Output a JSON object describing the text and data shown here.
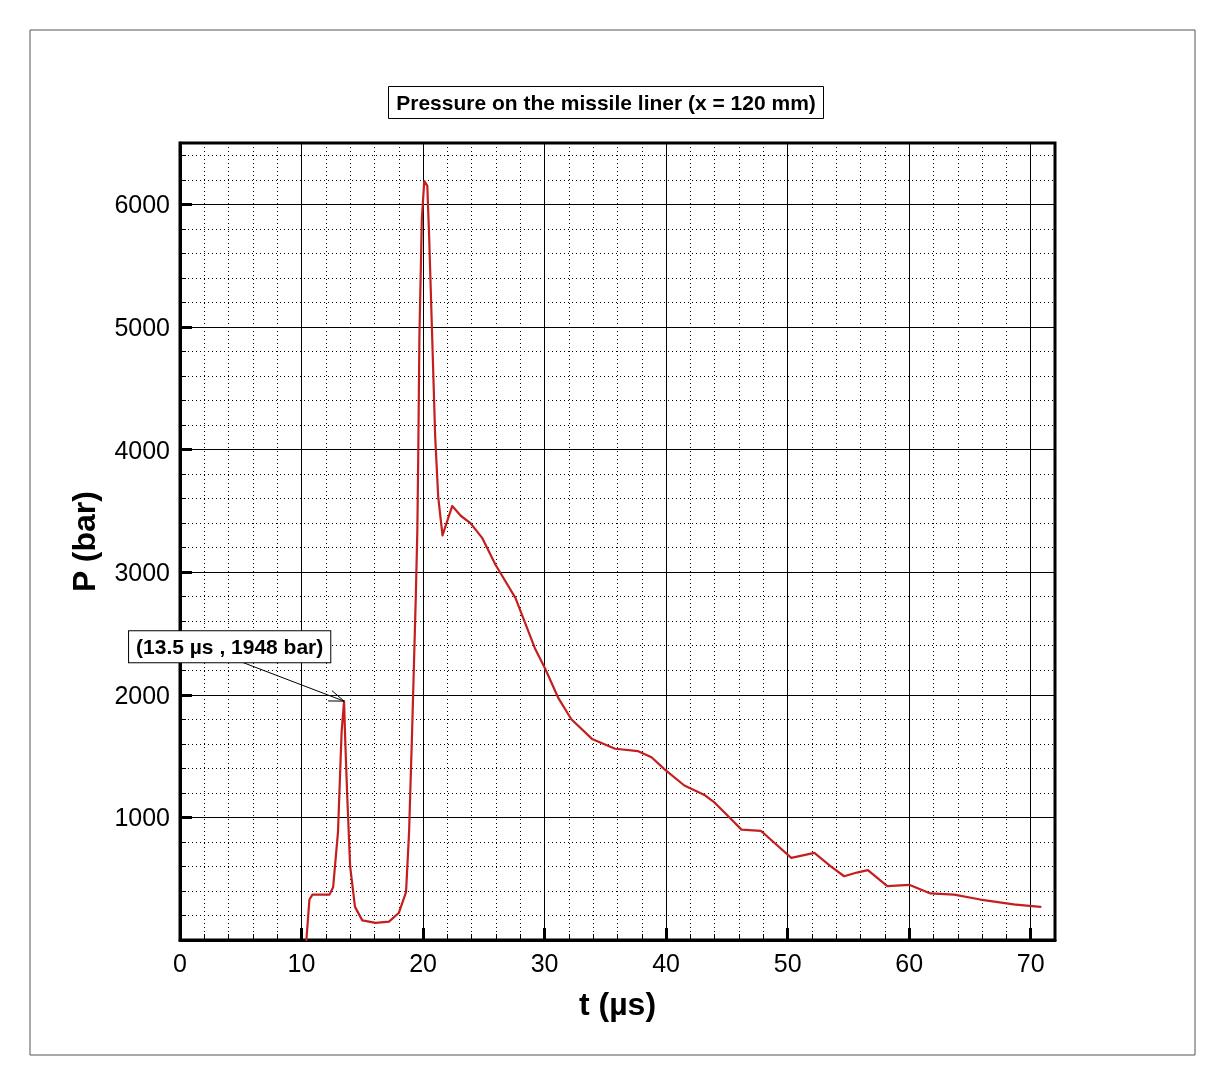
{
  "chart_data": {
    "type": "line",
    "title": "Pressure on the missile liner (x = 120 mm)",
    "xlabel": "t (µs)",
    "ylabel": "P (bar)",
    "annotations": [
      {
        "text": "(13.5 µs , 1948 bar)",
        "x": 13.5,
        "y": 1948
      }
    ],
    "xlim": [
      0,
      72
    ],
    "xticks": [
      0,
      10,
      20,
      30,
      40,
      50,
      60,
      70
    ],
    "ylim": [
      0,
      6500
    ],
    "yticks": [
      1000,
      2000,
      3000,
      4000,
      5000,
      6000
    ],
    "grid": true,
    "marker": "none",
    "line_style": "solid",
    "series": [
      {
        "color": "#c41e1e",
        "x": [
          10.4,
          10.65,
          10.9,
          12.3,
          12.6,
          13.0,
          13.3,
          13.5,
          13.6,
          13.75,
          14.0,
          14.4,
          15.0,
          16.1,
          17.2,
          18.0,
          18.6,
          18.85,
          19.1,
          19.4,
          19.53,
          19.6,
          19.7,
          19.9,
          20.1,
          20.35,
          20.5,
          20.75,
          21.0,
          21.25,
          21.6,
          22.0,
          22.4,
          23.1,
          23.9,
          24.86,
          25.96,
          27.6,
          29.2,
          30.06,
          31.15,
          32.2,
          33.9,
          35.8,
          37.7,
          38.8,
          39.9,
          41.5,
          43.2,
          44.0,
          45.4,
          46.2,
          47.8,
          48.6,
          50.3,
          52.2,
          53.55,
          54.65,
          55.7,
          56.6,
          58.2,
          60.0,
          61.75,
          63.7,
          65.85,
          68.6,
          70.8
        ],
        "values": [
          0,
          330,
          370,
          370,
          430,
          880,
          1700,
          1948,
          1620,
          1200,
          600,
          270,
          160,
          140,
          150,
          220,
          390,
          880,
          1700,
          2790,
          3340,
          3910,
          4920,
          5880,
          6190,
          6150,
          5740,
          4920,
          4100,
          3610,
          3300,
          3420,
          3540,
          3460,
          3400,
          3280,
          3060,
          2790,
          2380,
          2210,
          1970,
          1800,
          1640,
          1560,
          1540,
          1490,
          1390,
          1260,
          1180,
          1120,
          980,
          900,
          890,
          820,
          670,
          710,
          600,
          520,
          550,
          570,
          440,
          450,
          380,
          370,
          330,
          290,
          270
        ]
      }
    ]
  }
}
